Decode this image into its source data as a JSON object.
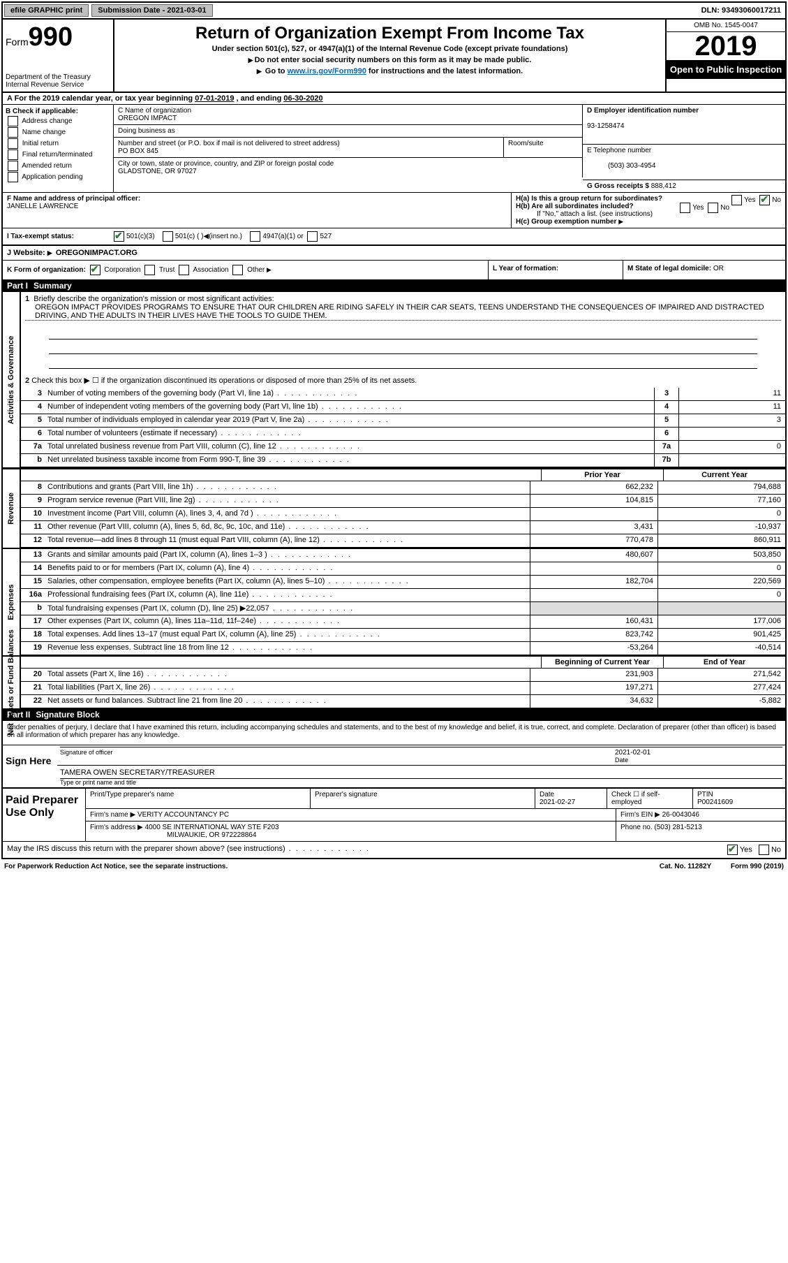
{
  "topbar": {
    "efile": "efile GRAPHIC print",
    "sub_date_label": "Submission Date - ",
    "sub_date": "2021-03-01",
    "dln_label": "DLN: ",
    "dln": "93493060017211"
  },
  "header": {
    "form_label": "Form",
    "form_num": "990",
    "dept": "Department of the Treasury\nInternal Revenue Service",
    "title": "Return of Organization Exempt From Income Tax",
    "sub": "Under section 501(c), 527, or 4947(a)(1) of the Internal Revenue Code (except private foundations)",
    "note1": "Do not enter social security numbers on this form as it may be made public.",
    "note2_pre": "Go to ",
    "note2_link": "www.irs.gov/Form990",
    "note2_post": " for instructions and the latest information.",
    "omb": "OMB No. 1545-0047",
    "year": "2019",
    "inspect": "Open to Public Inspection"
  },
  "row_a": {
    "text_pre": "A For the 2019 calendar year, or tax year beginning ",
    "begin": "07-01-2019",
    "mid": " , and ending ",
    "end": "06-30-2020"
  },
  "b": {
    "label": "B Check if applicable:",
    "opts": [
      "Address change",
      "Name change",
      "Initial return",
      "Final return/terminated",
      "Amended return",
      "Application pending"
    ]
  },
  "c": {
    "name_label": "C Name of organization",
    "name": "OREGON IMPACT",
    "dba_label": "Doing business as",
    "dba": "",
    "addr_label": "Number and street (or P.O. box if mail is not delivered to street address)",
    "addr": "PO BOX 845",
    "room_label": "Room/suite",
    "room": "",
    "city_label": "City or town, state or province, country, and ZIP or foreign postal code",
    "city": "GLADSTONE, OR  97027"
  },
  "d": {
    "ein_label": "D Employer identification number",
    "ein": "93-1258474",
    "tel_label": "E Telephone number",
    "tel": "(503) 303-4954",
    "gross_label": "G Gross receipts $ ",
    "gross": "888,412"
  },
  "f": {
    "label": "F Name and address of principal officer:",
    "name": "JANELLE LAWRENCE"
  },
  "h": {
    "a": "H(a)  Is this a group return for subordinates?",
    "b": "H(b)  Are all subordinates included?",
    "b_note": "If \"No,\" attach a list. (see instructions)",
    "c": "H(c)  Group exemption number",
    "yes": "Yes",
    "no": "No"
  },
  "i": {
    "label": "I Tax-exempt status:",
    "o1": "501(c)(3)",
    "o2": "501(c) (  )",
    "o2b": "(insert no.)",
    "o3": "4947(a)(1) or",
    "o4": "527"
  },
  "j": {
    "label": "J Website:",
    "val": "OREGONIMPACT.ORG"
  },
  "klm": {
    "k": "K Form of organization:",
    "k_opts": [
      "Corporation",
      "Trust",
      "Association",
      "Other"
    ],
    "l": "L Year of formation:",
    "l_val": "",
    "m": "M State of legal domicile: ",
    "m_val": "OR"
  },
  "part1": {
    "title": "Part I",
    "name": "Summary",
    "q1_label": "1",
    "q1": "Briefly describe the organization's mission or most significant activities:",
    "mission": "OREGON IMPACT PROVIDES PROGRAMS TO ENSURE THAT OUR CHILDREN ARE RIDING SAFELY IN THEIR CAR SEATS, TEENS UNDERSTAND THE CONSEQUENCES OF IMPAIRED AND DISTRACTED DRIVING, AND THE ADULTS IN THEIR LIVES HAVE THE TOOLS TO GUIDE THEM.",
    "q2": "Check this box ▶ ☐ if the organization discontinued its operations or disposed of more than 25% of its net assets.",
    "sections": {
      "gov": "Activities & Governance",
      "rev": "Revenue",
      "exp": "Expenses",
      "net": "Net Assets or Fund Balances"
    },
    "gov_lines": [
      {
        "n": "3",
        "d": "Number of voting members of the governing body (Part VI, line 1a)",
        "box": "3",
        "v": "11"
      },
      {
        "n": "4",
        "d": "Number of independent voting members of the governing body (Part VI, line 1b)",
        "box": "4",
        "v": "11"
      },
      {
        "n": "5",
        "d": "Total number of individuals employed in calendar year 2019 (Part V, line 2a)",
        "box": "5",
        "v": "3"
      },
      {
        "n": "6",
        "d": "Total number of volunteers (estimate if necessary)",
        "box": "6",
        "v": ""
      },
      {
        "n": "7a",
        "d": "Total unrelated business revenue from Part VIII, column (C), line 12",
        "box": "7a",
        "v": "0"
      },
      {
        "n": "b",
        "d": "Net unrelated business taxable income from Form 990-T, line 39",
        "box": "7b",
        "v": ""
      }
    ],
    "col_headers": {
      "py": "Prior Year",
      "cy": "Current Year"
    },
    "rev_lines": [
      {
        "n": "8",
        "d": "Contributions and grants (Part VIII, line 1h)",
        "py": "662,232",
        "cy": "794,688"
      },
      {
        "n": "9",
        "d": "Program service revenue (Part VIII, line 2g)",
        "py": "104,815",
        "cy": "77,160"
      },
      {
        "n": "10",
        "d": "Investment income (Part VIII, column (A), lines 3, 4, and 7d )",
        "py": "",
        "cy": "0"
      },
      {
        "n": "11",
        "d": "Other revenue (Part VIII, column (A), lines 5, 6d, 8c, 9c, 10c, and 11e)",
        "py": "3,431",
        "cy": "-10,937"
      },
      {
        "n": "12",
        "d": "Total revenue—add lines 8 through 11 (must equal Part VIII, column (A), line 12)",
        "py": "770,478",
        "cy": "860,911"
      }
    ],
    "exp_lines": [
      {
        "n": "13",
        "d": "Grants and similar amounts paid (Part IX, column (A), lines 1–3 )",
        "py": "480,607",
        "cy": "503,850"
      },
      {
        "n": "14",
        "d": "Benefits paid to or for members (Part IX, column (A), line 4)",
        "py": "",
        "cy": "0"
      },
      {
        "n": "15",
        "d": "Salaries, other compensation, employee benefits (Part IX, column (A), lines 5–10)",
        "py": "182,704",
        "cy": "220,569"
      },
      {
        "n": "16a",
        "d": "Professional fundraising fees (Part IX, column (A), line 11e)",
        "py": "",
        "cy": "0"
      },
      {
        "n": "b",
        "d": "Total fundraising expenses (Part IX, column (D), line 25) ▶22,057",
        "py": "shade",
        "cy": "shade"
      },
      {
        "n": "17",
        "d": "Other expenses (Part IX, column (A), lines 11a–11d, 11f–24e)",
        "py": "160,431",
        "cy": "177,006"
      },
      {
        "n": "18",
        "d": "Total expenses. Add lines 13–17 (must equal Part IX, column (A), line 25)",
        "py": "823,742",
        "cy": "901,425"
      },
      {
        "n": "19",
        "d": "Revenue less expenses. Subtract line 18 from line 12",
        "py": "-53,264",
        "cy": "-40,514"
      }
    ],
    "net_headers": {
      "py": "Beginning of Current Year",
      "cy": "End of Year"
    },
    "net_lines": [
      {
        "n": "20",
        "d": "Total assets (Part X, line 16)",
        "py": "231,903",
        "cy": "271,542"
      },
      {
        "n": "21",
        "d": "Total liabilities (Part X, line 26)",
        "py": "197,271",
        "cy": "277,424"
      },
      {
        "n": "22",
        "d": "Net assets or fund balances. Subtract line 21 from line 20",
        "py": "34,632",
        "cy": "-5,882"
      }
    ]
  },
  "part2": {
    "title": "Part II",
    "name": "Signature Block",
    "decl": "Under penalties of perjury, I declare that I have examined this return, including accompanying schedules and statements, and to the best of my knowledge and belief, it is true, correct, and complete. Declaration of preparer (other than officer) is based on all information of which preparer has any knowledge.",
    "sign_here": "Sign Here",
    "sig_officer": "Signature of officer",
    "sig_date_label": "Date",
    "sig_date": "2021-02-01",
    "officer_name": "TAMERA OWEN  SECRETARY/TREASURER",
    "officer_type": "Type or print name and title",
    "paid": "Paid Preparer Use Only",
    "prep_name_label": "Print/Type preparer's name",
    "prep_name": "",
    "prep_sig_label": "Preparer's signature",
    "prep_date_label": "Date",
    "prep_date": "2021-02-27",
    "self_emp": "Check ☐ if self-employed",
    "ptin_label": "PTIN",
    "ptin": "P00241609",
    "firm_name_label": "Firm's name   ▶ ",
    "firm_name": "VERITY ACCOUNTANCY PC",
    "firm_ein_label": "Firm's EIN ▶ ",
    "firm_ein": "26-0043046",
    "firm_addr_label": "Firm's address ▶ ",
    "firm_addr1": "4000 SE INTERNATIONAL WAY STE F203",
    "firm_addr2": "MILWAUKIE, OR  972228864",
    "firm_phone_label": "Phone no. ",
    "firm_phone": "(503) 281-5213",
    "discuss": "May the IRS discuss this return with the preparer shown above? (see instructions)",
    "yes": "Yes",
    "no": "No"
  },
  "footer": {
    "pra": "For Paperwork Reduction Act Notice, see the separate instructions.",
    "cat": "Cat. No. 11282Y",
    "form": "Form 990 (2019)"
  }
}
